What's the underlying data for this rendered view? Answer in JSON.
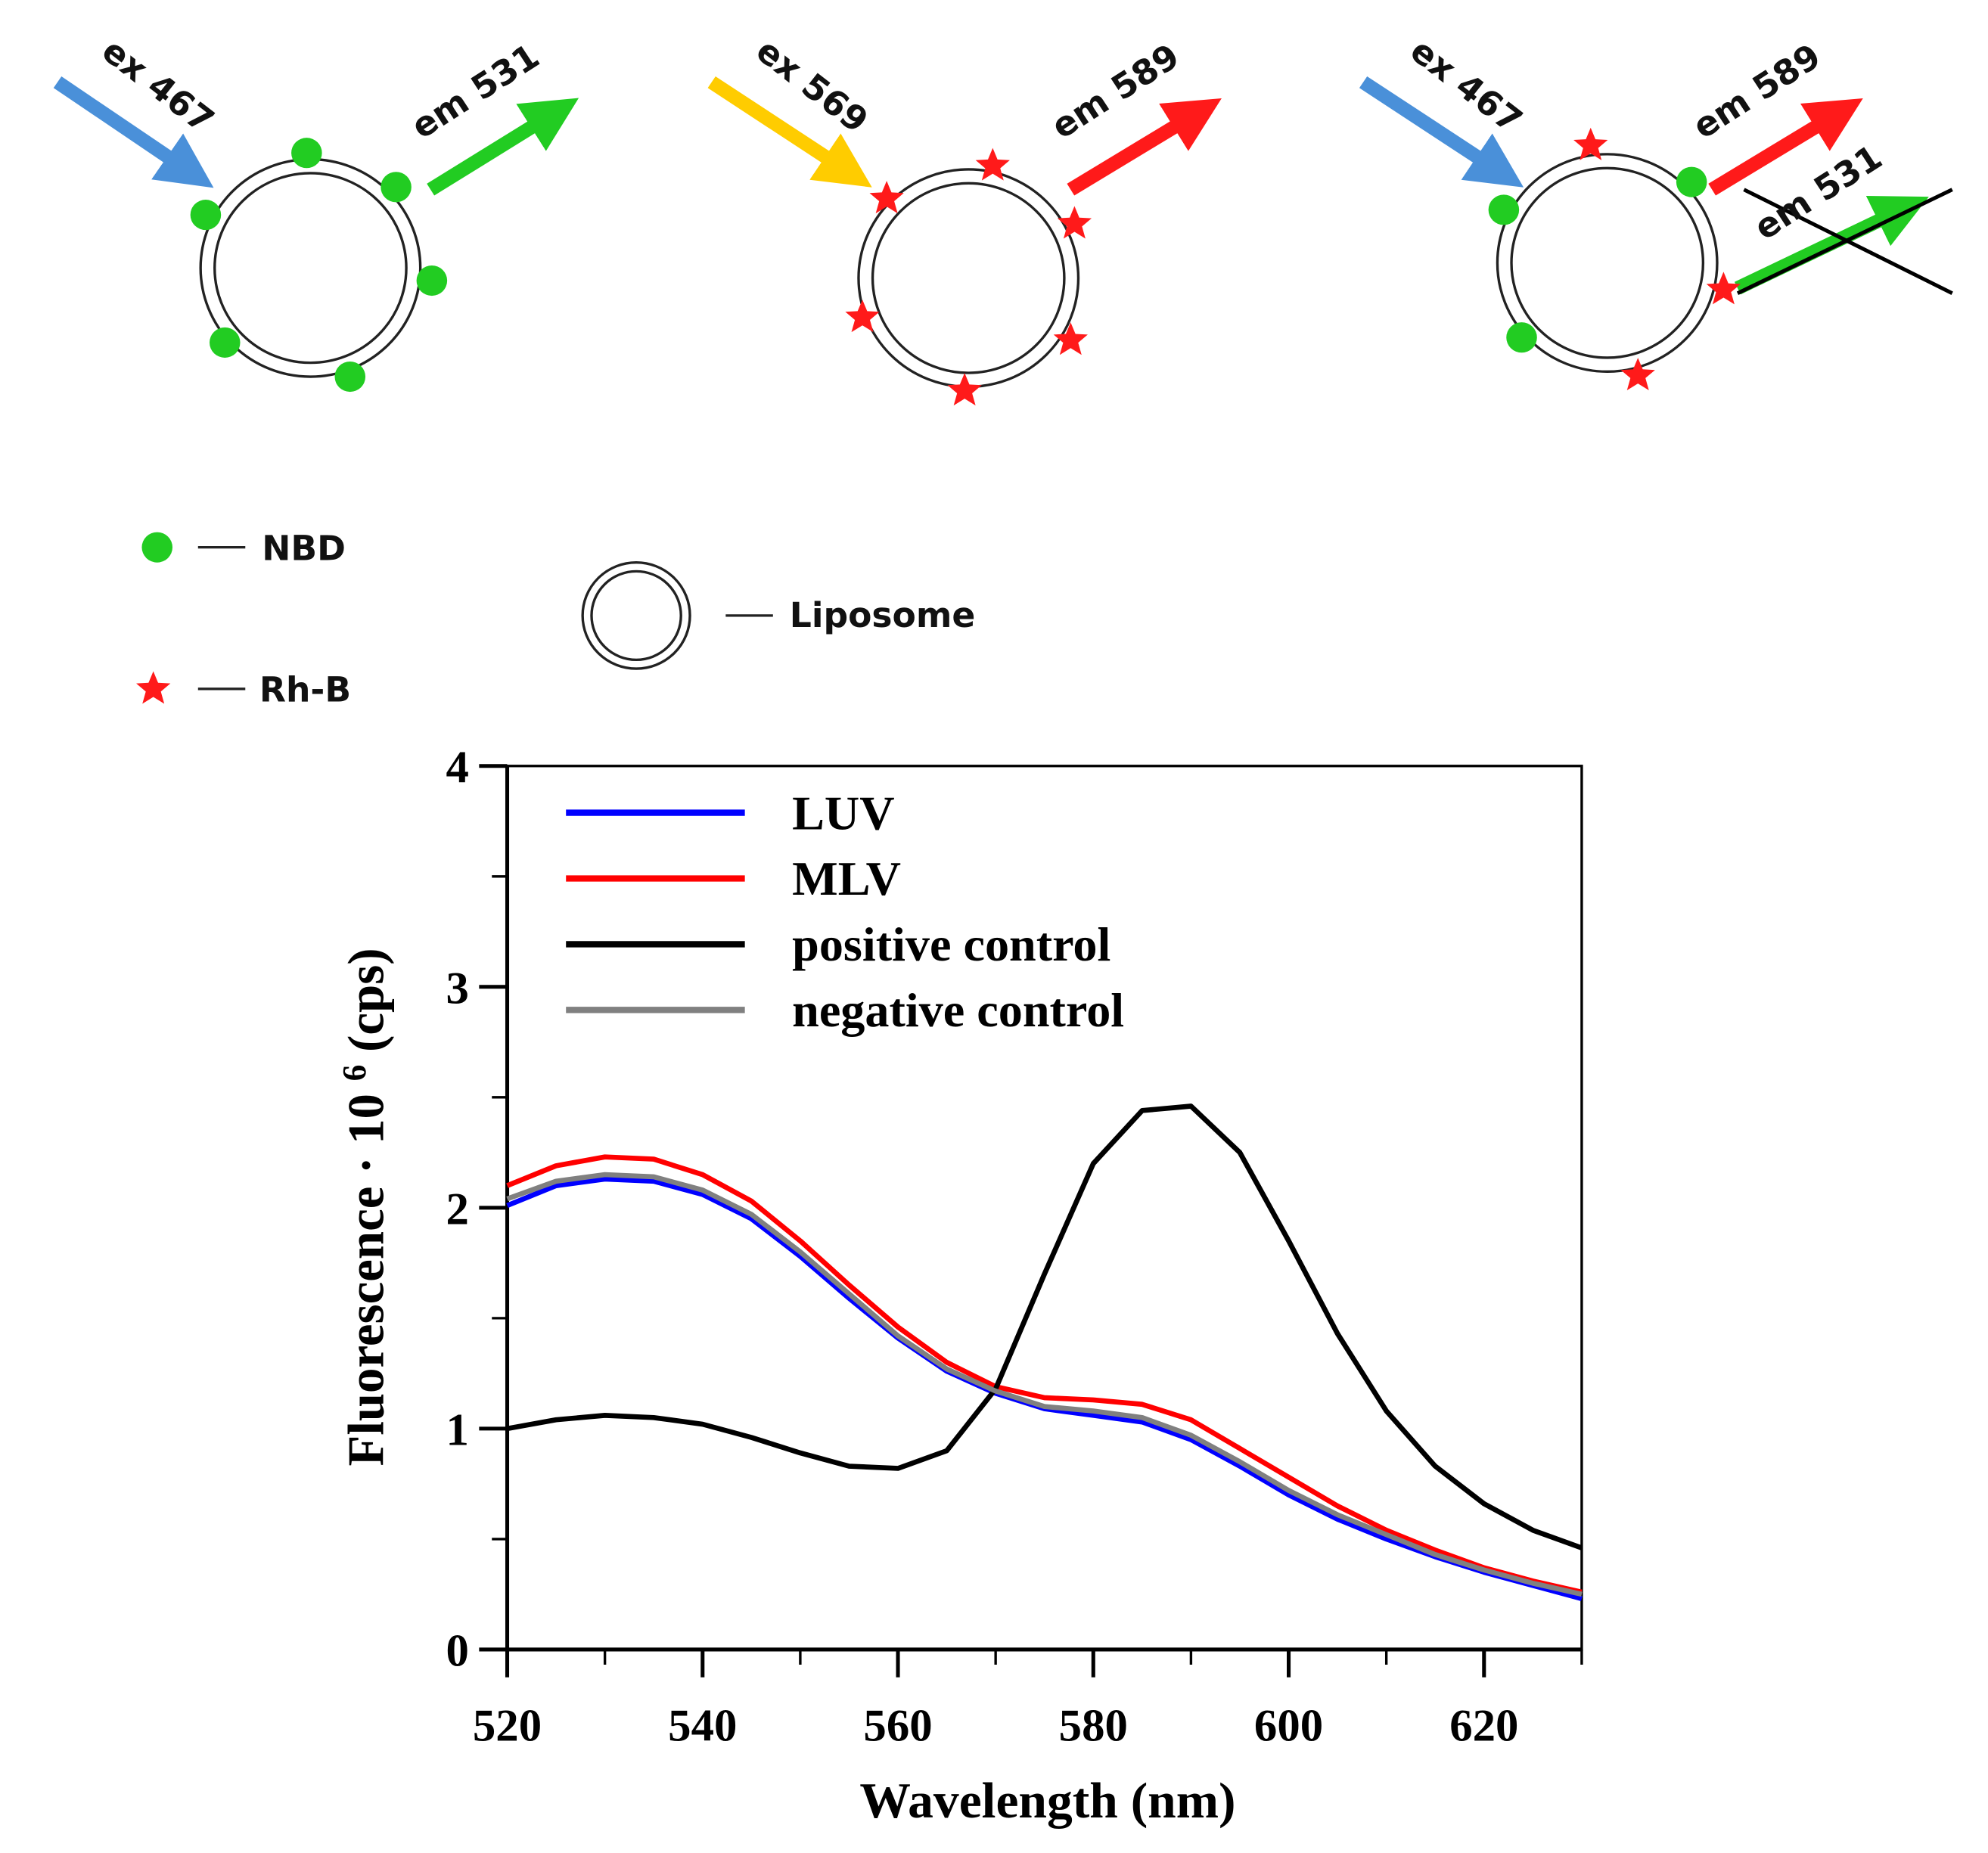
{
  "diagram": {
    "panels": [
      {
        "ex": "ex 467",
        "em": "em 531"
      },
      {
        "ex": "ex 569",
        "em": "em 589"
      },
      {
        "ex": "ex 467",
        "em": "em 589",
        "em_crossed": "em 531"
      }
    ],
    "legend": {
      "nbd": "NBD",
      "rhb": "Rh-B",
      "liposome": "Liposome"
    }
  },
  "chart_data": {
    "type": "line",
    "xlabel": "Wavelength (nm)",
    "ylabel": {
      "text": "Fluorescence  · 10",
      "sup": "6",
      "unit": "(cps)"
    },
    "x": [
      520,
      525,
      530,
      535,
      540,
      545,
      550,
      555,
      560,
      565,
      570,
      575,
      580,
      585,
      590,
      595,
      600,
      605,
      610,
      615,
      620,
      625,
      630
    ],
    "series": [
      {
        "name": "LUV",
        "color": "#0000ff",
        "values": [
          2.01,
          2.1,
          2.13,
          2.12,
          2.06,
          1.95,
          1.78,
          1.59,
          1.41,
          1.26,
          1.16,
          1.09,
          1.06,
          1.03,
          0.95,
          0.83,
          0.7,
          0.59,
          0.5,
          0.42,
          0.35,
          0.29,
          0.23
        ]
      },
      {
        "name": "MLV",
        "color": "#ff0000",
        "values": [
          2.1,
          2.19,
          2.23,
          2.22,
          2.15,
          2.03,
          1.85,
          1.65,
          1.46,
          1.3,
          1.19,
          1.14,
          1.13,
          1.11,
          1.04,
          0.91,
          0.78,
          0.65,
          0.54,
          0.45,
          0.37,
          0.31,
          0.26
        ]
      },
      {
        "name": "positive control",
        "color": "#000000",
        "values": [
          1.0,
          1.04,
          1.06,
          1.05,
          1.02,
          0.96,
          0.89,
          0.83,
          0.82,
          0.9,
          1.18,
          1.7,
          2.2,
          2.44,
          2.46,
          2.25,
          1.85,
          1.43,
          1.08,
          0.83,
          0.66,
          0.54,
          0.46
        ]
      },
      {
        "name": "negative control",
        "color": "#808080",
        "values": [
          2.04,
          2.12,
          2.15,
          2.14,
          2.08,
          1.97,
          1.8,
          1.61,
          1.42,
          1.27,
          1.17,
          1.1,
          1.08,
          1.05,
          0.97,
          0.85,
          0.72,
          0.61,
          0.52,
          0.43,
          0.36,
          0.3,
          0.25
        ]
      }
    ],
    "xlim": [
      520,
      630
    ],
    "xticks": [
      520,
      540,
      560,
      580,
      600,
      620
    ],
    "xminor_ticks": [
      530,
      550,
      570,
      590,
      610,
      630
    ],
    "ylim": [
      0,
      4
    ],
    "yticks": [
      0,
      1,
      2,
      3,
      4
    ],
    "yminor_ticks": [
      0.5,
      1.5,
      2.5,
      3.5
    ]
  }
}
